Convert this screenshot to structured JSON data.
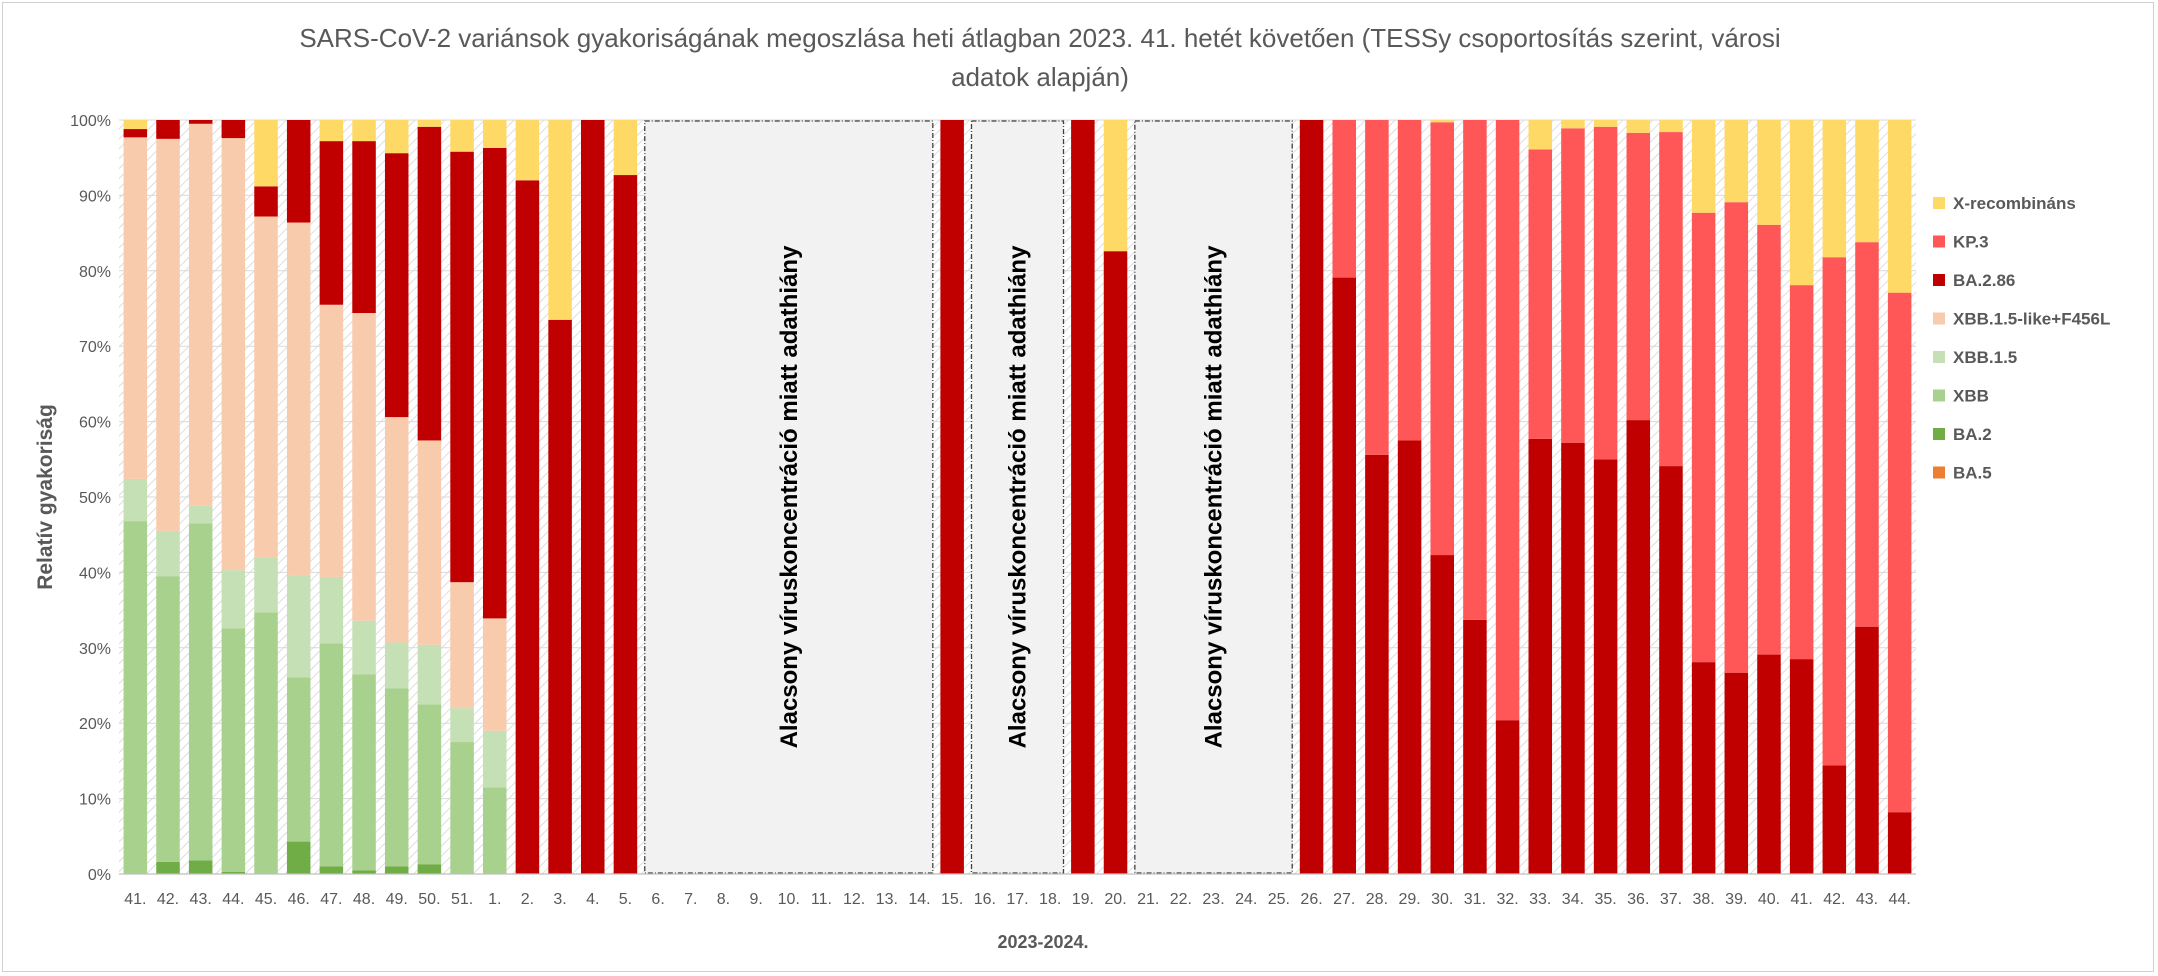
{
  "chart_data": {
    "type": "bar",
    "stacked": true,
    "title_line1": "SARS-CoV-2 variánsok gyakoriságának megoszlása heti átlagban 2023. 41. hetét követően (TESSy csoportosítás szerint, városi",
    "title_line2": "adatok alapján)",
    "xlabel": "2023-2024.",
    "ylabel": "Relatív gyakoriság",
    "ylim": [
      0,
      100
    ],
    "yticks": [
      "0%",
      "10%",
      "20%",
      "30%",
      "40%",
      "50%",
      "60%",
      "70%",
      "80%",
      "90%",
      "100%"
    ],
    "categories": [
      "41.",
      "42.",
      "43.",
      "44.",
      "45.",
      "46.",
      "47.",
      "48.",
      "49.",
      "50.",
      "51.",
      "1.",
      "2.",
      "3.",
      "4.",
      "5.",
      "6.",
      "7.",
      "8.",
      "9.",
      "10.",
      "11.",
      "12.",
      "13.",
      "14.",
      "15.",
      "16.",
      "17.",
      "18.",
      "19.",
      "20.",
      "21.",
      "22.",
      "23.",
      "24.",
      "25.",
      "26.",
      "27.",
      "28.",
      "29.",
      "30.",
      "31.",
      "32.",
      "33.",
      "34.",
      "35.",
      "36.",
      "37.",
      "38.",
      "39.",
      "40.",
      "41.",
      "42.",
      "43.",
      "44."
    ],
    "series": [
      {
        "name": "BA.5",
        "color": "#ED7D31",
        "values": [
          0,
          0,
          0,
          0,
          0,
          0,
          0,
          0,
          0,
          0,
          0,
          0,
          0,
          0,
          0,
          0,
          null,
          null,
          null,
          null,
          null,
          null,
          null,
          null,
          null,
          0,
          null,
          null,
          null,
          0,
          0,
          null,
          null,
          null,
          null,
          null,
          0,
          0,
          0,
          0,
          0,
          0,
          0,
          0,
          0,
          0,
          0,
          0,
          0,
          0,
          0,
          0,
          0,
          0,
          0
        ]
      },
      {
        "name": "BA.2",
        "color": "#70AD47",
        "values": [
          0,
          1.6,
          1.8,
          0.3,
          0,
          4.3,
          1,
          0.5,
          1,
          1.3,
          0,
          0,
          0,
          0,
          0,
          0,
          null,
          null,
          null,
          null,
          null,
          null,
          null,
          null,
          null,
          0,
          null,
          null,
          null,
          0,
          0,
          null,
          null,
          null,
          null,
          null,
          0,
          0,
          0,
          0,
          0,
          0,
          0,
          0,
          0,
          0,
          0,
          0,
          0,
          0,
          0,
          0,
          0,
          0,
          0
        ]
      },
      {
        "name": "XBB",
        "color": "#A9D18E",
        "values": [
          46.8,
          37.9,
          44.7,
          32.3,
          34.7,
          21.8,
          29.6,
          26,
          23.6,
          21.2,
          17.5,
          11.5,
          0,
          0,
          0,
          0,
          null,
          null,
          null,
          null,
          null,
          null,
          null,
          null,
          null,
          0,
          null,
          null,
          null,
          0,
          0,
          null,
          null,
          null,
          null,
          null,
          0,
          0,
          0,
          0,
          0,
          0,
          0,
          0,
          0,
          0,
          0,
          0,
          0,
          0,
          0,
          0,
          0,
          0,
          0
        ]
      },
      {
        "name": "XBB.1.5",
        "color": "#C5E0B4",
        "values": [
          5.6,
          6,
          2.4,
          7.7,
          7.3,
          13.5,
          8.8,
          7.1,
          6.1,
          7.9,
          4.5,
          7.5,
          0,
          0,
          0,
          0,
          null,
          null,
          null,
          null,
          null,
          null,
          null,
          null,
          null,
          0,
          null,
          null,
          null,
          0,
          0,
          null,
          null,
          null,
          null,
          null,
          0,
          0,
          0,
          0,
          0,
          0,
          0,
          0,
          0,
          0,
          0,
          0,
          0,
          0,
          0,
          0,
          0,
          0,
          0
        ]
      },
      {
        "name": "XBB.1.5-like+F456L",
        "color": "#F8CBAD",
        "values": [
          45.3,
          52,
          50.6,
          57.3,
          45.2,
          46.8,
          36.1,
          40.8,
          29.9,
          27.1,
          16.7,
          14.9,
          0,
          0,
          0,
          0,
          null,
          null,
          null,
          null,
          null,
          null,
          null,
          null,
          null,
          0,
          null,
          null,
          null,
          0,
          0,
          null,
          null,
          null,
          null,
          null,
          0,
          0,
          0,
          0,
          0,
          0,
          0,
          0,
          0,
          0,
          0,
          0,
          0,
          0,
          0,
          0,
          0,
          0,
          0
        ]
      },
      {
        "name": "BA.2.86",
        "color": "#C00000",
        "values": [
          1.1,
          2.5,
          0.5,
          2.4,
          4,
          13.6,
          21.7,
          22.8,
          35,
          41.6,
          57.1,
          62.4,
          92,
          73.5,
          100,
          92.7,
          null,
          null,
          null,
          null,
          null,
          null,
          null,
          null,
          null,
          100,
          null,
          null,
          null,
          100,
          82.6,
          null,
          null,
          null,
          null,
          null,
          100,
          79.1,
          55.6,
          57.5,
          42.3,
          33.7,
          20.4,
          57.7,
          57.2,
          55,
          60.2,
          54.1,
          28.1,
          26.7,
          29.1,
          28.5,
          14.4,
          32.8,
          8.2
        ]
      },
      {
        "name": "KP.3",
        "color": "#FF5757",
        "values": [
          0,
          0,
          0,
          0,
          0,
          0,
          0,
          0,
          0,
          0,
          0,
          0,
          0,
          0,
          0,
          0,
          null,
          null,
          null,
          null,
          null,
          null,
          null,
          null,
          null,
          0,
          null,
          null,
          null,
          0,
          0,
          null,
          null,
          null,
          null,
          null,
          0,
          20.9,
          44.4,
          42.5,
          57.4,
          66.3,
          79.6,
          38.4,
          41.7,
          44.1,
          38.1,
          44.3,
          59.6,
          62.4,
          57,
          49.6,
          67.4,
          51,
          68.9
        ]
      },
      {
        "name": "X-recombináns",
        "color": "#FFD966",
        "values": [
          1.2,
          0,
          0,
          0,
          8.8,
          0,
          2.8,
          2.8,
          4.4,
          0.9,
          4.2,
          3.7,
          8,
          26.5,
          0,
          7.3,
          null,
          null,
          null,
          null,
          null,
          null,
          null,
          null,
          null,
          0,
          null,
          null,
          null,
          0,
          17.4,
          null,
          null,
          null,
          null,
          null,
          0,
          0,
          0,
          0,
          0.3,
          0,
          0,
          3.9,
          1.1,
          0.9,
          1.7,
          1.6,
          12.3,
          10.9,
          13.9,
          21.9,
          18.2,
          16.2,
          22.9
        ]
      }
    ],
    "legend_order": [
      "X-recombináns",
      "KP.3",
      "BA.2.86",
      "XBB.1.5-like+F456L",
      "XBB.1.5",
      "XBB",
      "BA.2",
      "BA.5"
    ],
    "legend_position": "right",
    "grid": true,
    "gap_annotations": [
      {
        "from": "6.",
        "to": "14.",
        "text": "Alacsony víruskoncentráció miatt adathiány"
      },
      {
        "from": "16.",
        "to": "18.",
        "text": "Alacsony víruskoncentráció miatt adathiány"
      },
      {
        "from": "21.",
        "to": "25.",
        "text": "Alacsony víruskoncentráció miatt adathiány"
      }
    ]
  }
}
